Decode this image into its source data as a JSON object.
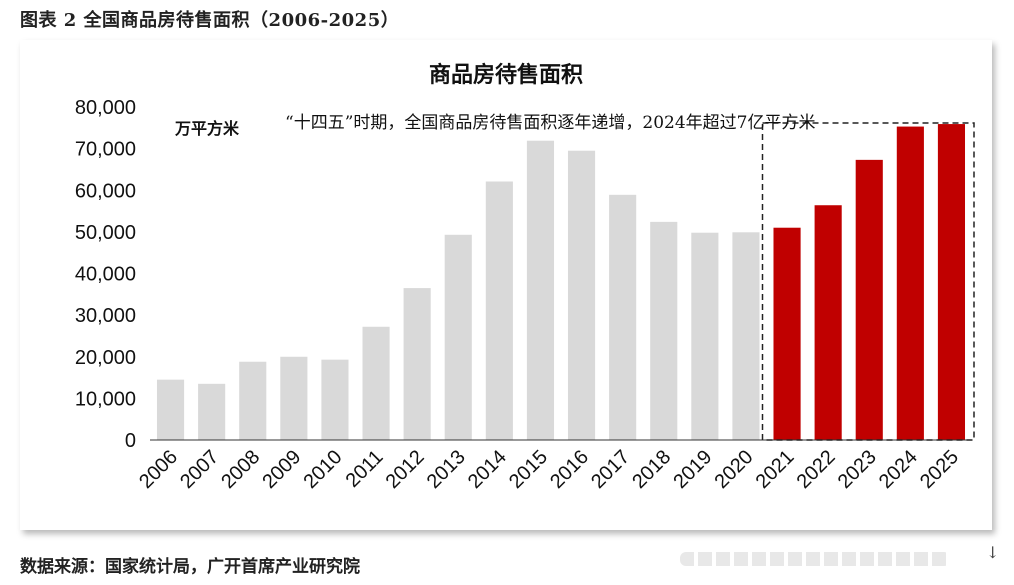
{
  "figure_title": "图表 2 全国商品房待售面积（2006-2025）",
  "source": "数据来源：国家统计局，广开首席产业研究院",
  "corner_glyph": "↓",
  "chart_data": {
    "type": "bar",
    "title": "商品房待售面积",
    "unit_label": "万平方米",
    "annotation": "“十四五”时期，全国商品房待售面积逐年递增，2024年超过7亿平方米",
    "categories": [
      "2006",
      "2007",
      "2008",
      "2009",
      "2010",
      "2011",
      "2012",
      "2013",
      "2014",
      "2015",
      "2016",
      "2017",
      "2018",
      "2019",
      "2020",
      "2021",
      "2022",
      "2023",
      "2024",
      "2025"
    ],
    "values": [
      14500,
      13500,
      18800,
      20000,
      19300,
      27200,
      36500,
      49300,
      62100,
      71900,
      69500,
      58900,
      52400,
      49800,
      49900,
      51000,
      56400,
      67300,
      75300,
      75900
    ],
    "ylim": [
      0,
      80000
    ],
    "yticks": [
      0,
      10000,
      20000,
      30000,
      40000,
      50000,
      60000,
      70000,
      80000
    ],
    "ytick_labels": [
      "0",
      "10,000",
      "20,000",
      "30,000",
      "40,000",
      "50,000",
      "60,000",
      "70,000",
      "80,000"
    ],
    "highlight_from_index": 15,
    "colors": {
      "base": "#d9d9d9",
      "highlight": "#c00000",
      "axis": "#333333"
    }
  }
}
